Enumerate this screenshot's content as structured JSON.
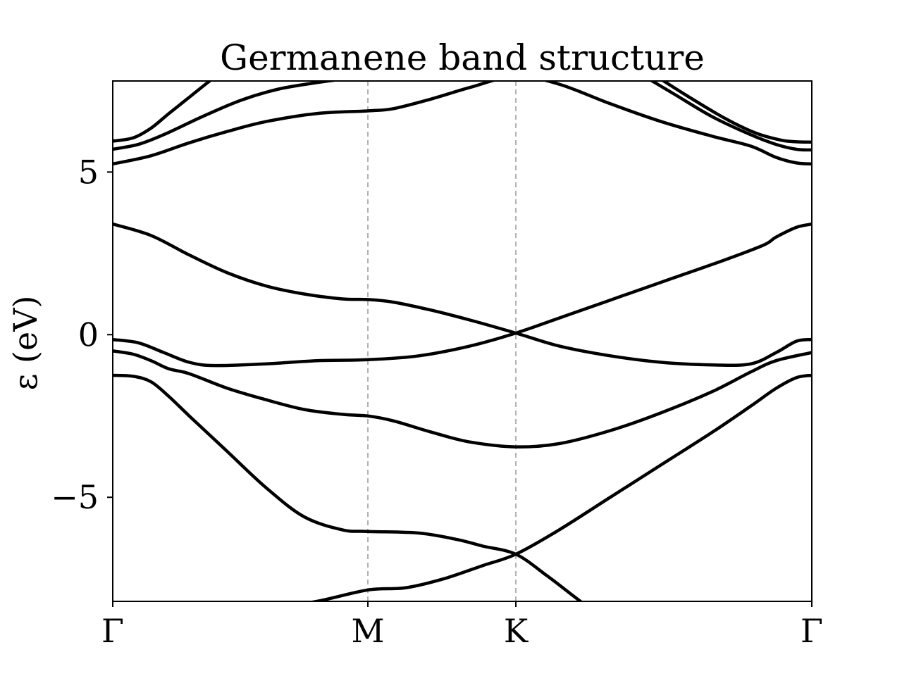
{
  "chart_data": {
    "type": "line",
    "title": "Germanene band structure",
    "xlabel": "",
    "ylabel": "ε (eV)",
    "x_ticks": [
      {
        "label": "Γ",
        "x": 0.0
      },
      {
        "label": "M",
        "x": 1.0
      },
      {
        "label": "K",
        "x": 1.58
      },
      {
        "label": "Γ",
        "x": 2.74
      }
    ],
    "y_ticks": [
      {
        "label": "−5",
        "y": -5
      },
      {
        "label": "0",
        "y": 0
      },
      {
        "label": "5",
        "y": 5
      }
    ],
    "xlim": [
      0,
      2.74
    ],
    "ylim": [
      -8.2,
      7.8
    ],
    "grid": false,
    "high_symmetry_lines": [
      1.0,
      1.58
    ],
    "colors": {
      "band": "#000000",
      "symmetry_line": "#b0b0b0",
      "axis": "#000000"
    },
    "series": [
      {
        "x": [
          0,
          0.1,
          0.2,
          0.3,
          0.45,
          0.6,
          0.8,
          1.0,
          1.15,
          1.3,
          1.45,
          1.58,
          1.75,
          1.95,
          2.15,
          2.35,
          2.5,
          2.6,
          2.68,
          2.74
        ],
        "y": [
          -8.8,
          -8.82,
          -8.8,
          -8.75,
          -8.6,
          -8.45,
          -8.2,
          -7.85,
          -7.78,
          -7.5,
          -7.1,
          -6.75,
          -6.0,
          -5.0,
          -4.0,
          -3.0,
          -2.2,
          -1.65,
          -1.32,
          -1.25
        ]
      },
      {
        "x": [
          0,
          0.08,
          0.15,
          0.22,
          0.3,
          0.45,
          0.6,
          0.75,
          0.9,
          1.0,
          1.2,
          1.35,
          1.45,
          1.58,
          1.7,
          1.8,
          1.9,
          2.0
        ],
        "y": [
          -1.25,
          -1.28,
          -1.45,
          -1.9,
          -2.5,
          -3.6,
          -4.7,
          -5.6,
          -6.0,
          -6.05,
          -6.1,
          -6.3,
          -6.5,
          -6.75,
          -7.4,
          -8.0,
          -8.6,
          -9.2
        ]
      },
      {
        "x": [
          0,
          0.08,
          0.15,
          0.22,
          0.3,
          0.45,
          0.6,
          0.75,
          0.9,
          1.0,
          1.1,
          1.25,
          1.4,
          1.58,
          1.75,
          1.95,
          2.15,
          2.35,
          2.5,
          2.6,
          2.74
        ],
        "y": [
          -0.5,
          -0.6,
          -0.8,
          -1.05,
          -1.2,
          -1.65,
          -2.0,
          -2.3,
          -2.45,
          -2.5,
          -2.65,
          -3.0,
          -3.3,
          -3.45,
          -3.35,
          -2.95,
          -2.4,
          -1.75,
          -1.15,
          -0.8,
          -0.55
        ]
      },
      {
        "x": [
          0,
          0.1,
          0.2,
          0.3,
          0.4,
          0.6,
          0.8,
          1.0,
          1.2,
          1.4,
          1.58,
          1.8,
          2.0,
          2.2,
          2.4,
          2.55,
          2.6,
          2.68,
          2.74
        ],
        "y": [
          -0.15,
          -0.25,
          -0.55,
          -0.85,
          -0.95,
          -0.9,
          -0.8,
          -0.77,
          -0.65,
          -0.35,
          0.05,
          0.65,
          1.2,
          1.75,
          2.3,
          2.75,
          3.0,
          3.3,
          3.4
        ]
      },
      {
        "x": [
          0,
          0.15,
          0.3,
          0.45,
          0.6,
          0.75,
          0.9,
          1.0,
          1.1,
          1.25,
          1.4,
          1.58,
          1.75,
          1.95,
          2.15,
          2.35,
          2.5,
          2.6,
          2.68,
          2.74
        ],
        "y": [
          3.4,
          3.05,
          2.45,
          1.9,
          1.5,
          1.25,
          1.1,
          1.08,
          1.0,
          0.75,
          0.45,
          0.05,
          -0.35,
          -0.65,
          -0.85,
          -0.93,
          -0.9,
          -0.55,
          -0.2,
          -0.15
        ]
      },
      {
        "x": [
          0,
          0.15,
          0.3,
          0.45,
          0.6,
          0.8,
          1.0,
          1.1,
          1.25,
          1.4,
          1.58,
          1.75,
          1.95,
          2.15,
          2.35,
          2.5,
          2.6,
          2.68,
          2.74
        ],
        "y": [
          5.25,
          5.5,
          5.9,
          6.25,
          6.55,
          6.8,
          6.88,
          6.95,
          7.25,
          7.6,
          7.95,
          7.7,
          7.1,
          6.55,
          6.1,
          5.8,
          5.45,
          5.28,
          5.25
        ]
      },
      {
        "x": [
          0,
          0.1,
          0.2,
          0.35,
          0.5,
          0.65,
          0.8,
          0.9,
          1.0,
          1.1,
          1.2
        ],
        "y": [
          5.7,
          5.85,
          6.15,
          6.7,
          7.2,
          7.55,
          7.75,
          7.85,
          7.9,
          7.95,
          8.05
        ]
      },
      {
        "x": [
          0,
          0.08,
          0.15,
          0.22,
          0.3,
          0.38,
          0.45
        ],
        "y": [
          5.95,
          6.05,
          6.35,
          6.8,
          7.3,
          7.8,
          8.2
        ]
      },
      {
        "x": [
          2.05,
          2.2,
          2.35,
          2.5,
          2.6,
          2.68,
          2.74
        ],
        "y": [
          8.1,
          7.4,
          6.7,
          6.15,
          5.85,
          5.7,
          5.68
        ]
      },
      {
        "x": [
          2.1,
          2.25,
          2.4,
          2.52,
          2.62,
          2.68,
          2.74
        ],
        "y": [
          8.1,
          7.35,
          6.65,
          6.2,
          5.98,
          5.93,
          5.92
        ]
      }
    ]
  }
}
